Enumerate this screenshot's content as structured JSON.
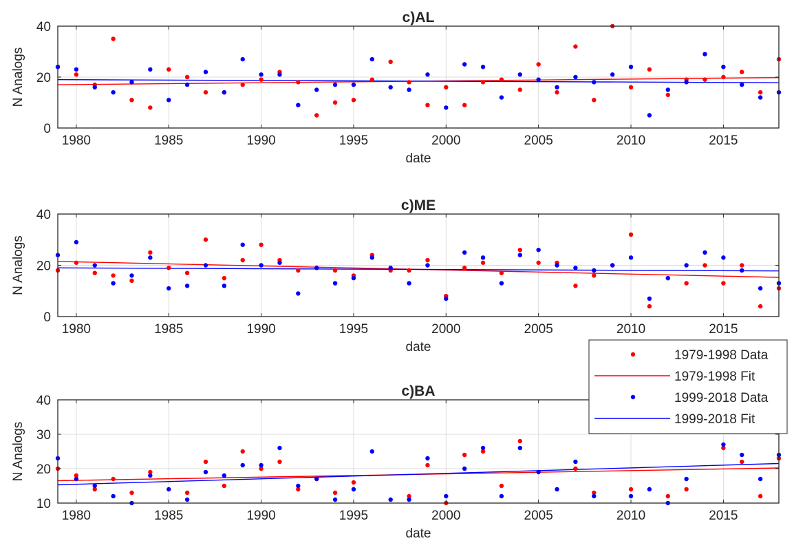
{
  "chart_data": [
    {
      "type": "scatter",
      "title": "c)AL",
      "xlabel": "date",
      "ylabel": "N Analogs",
      "xlim": [
        1979,
        2018
      ],
      "ylim": [
        0,
        40
      ],
      "xticks": [
        1980,
        1985,
        1990,
        1995,
        2000,
        2005,
        2010,
        2015
      ],
      "yticks": [
        0,
        20,
        40
      ],
      "grid": true,
      "series": [
        {
          "name": "1979-1998 Data",
          "kind": "points",
          "color": "#ff0000",
          "x": [
            1979,
            1980,
            1981,
            1982,
            1983,
            1984,
            1985,
            1986,
            1987,
            1988,
            1989,
            1990,
            1991,
            1992,
            1993,
            1994,
            1995,
            1996,
            1997,
            1998,
            1999,
            2000,
            2001,
            2002,
            2003,
            2004,
            2005,
            2006,
            2007,
            2008,
            2009,
            2010,
            2011,
            2012,
            2013,
            2014,
            2015,
            2016,
            2017,
            2018
          ],
          "y": [
            24,
            21,
            17,
            35,
            11,
            8,
            23,
            20,
            14,
            14,
            17,
            19,
            22,
            18,
            5,
            10,
            11,
            19,
            26,
            18,
            9,
            16,
            9,
            18,
            19,
            15,
            25,
            14,
            32,
            11,
            40,
            16,
            23,
            13,
            19,
            19,
            20,
            22,
            14,
            27
          ]
        },
        {
          "name": "1979-1998 Fit",
          "kind": "line",
          "color": "#ff0000",
          "x": [
            1979,
            2018
          ],
          "y": [
            17,
            19.8
          ]
        },
        {
          "name": "1999-2018 Data",
          "kind": "points",
          "color": "#0000ff",
          "x": [
            1979,
            1980,
            1981,
            1982,
            1983,
            1984,
            1985,
            1986,
            1987,
            1988,
            1989,
            1990,
            1991,
            1992,
            1993,
            1994,
            1995,
            1996,
            1997,
            1998,
            1999,
            2000,
            2001,
            2002,
            2003,
            2004,
            2005,
            2006,
            2007,
            2008,
            2009,
            2010,
            2011,
            2012,
            2013,
            2014,
            2015,
            2016,
            2017,
            2018
          ],
          "y": [
            24,
            23,
            16,
            14,
            18,
            23,
            11,
            17,
            22,
            14,
            27,
            21,
            21,
            9,
            15,
            17,
            17,
            27,
            16,
            15,
            21,
            8,
            25,
            24,
            12,
            21,
            19,
            16,
            20,
            18,
            21,
            24,
            5,
            15,
            18,
            29,
            24,
            17,
            12,
            14
          ]
        },
        {
          "name": "1999-2018 Fit",
          "kind": "line",
          "color": "#0000ff",
          "x": [
            1979,
            2018
          ],
          "y": [
            19,
            17.8
          ]
        }
      ]
    },
    {
      "type": "scatter",
      "title": "c)ME",
      "xlabel": "date",
      "ylabel": "N Analogs",
      "xlim": [
        1979,
        2018
      ],
      "ylim": [
        0,
        40
      ],
      "xticks": [
        1980,
        1985,
        1990,
        1995,
        2000,
        2005,
        2010,
        2015
      ],
      "yticks": [
        0,
        20,
        40
      ],
      "grid": true,
      "series": [
        {
          "name": "1979-1998 Data",
          "kind": "points",
          "color": "#ff0000",
          "x": [
            1979,
            1980,
            1981,
            1982,
            1983,
            1984,
            1985,
            1986,
            1987,
            1988,
            1989,
            1990,
            1991,
            1992,
            1993,
            1994,
            1995,
            1996,
            1997,
            1998,
            1999,
            2000,
            2001,
            2002,
            2003,
            2004,
            2005,
            2006,
            2007,
            2008,
            2009,
            2010,
            2011,
            2012,
            2013,
            2014,
            2015,
            2016,
            2017,
            2018
          ],
          "y": [
            18,
            21,
            17,
            16,
            14,
            25,
            19,
            17,
            30,
            15,
            22,
            28,
            22,
            18,
            19,
            18,
            16,
            24,
            18,
            18,
            22,
            8,
            19,
            21,
            17,
            26,
            21,
            21,
            12,
            16,
            20,
            32,
            4,
            15,
            13,
            20,
            13,
            20,
            4,
            11
          ]
        },
        {
          "name": "1979-1998 Fit",
          "kind": "line",
          "color": "#ff0000",
          "x": [
            1979,
            2018
          ],
          "y": [
            21.5,
            15.3
          ]
        },
        {
          "name": "1999-2018 Data",
          "kind": "points",
          "color": "#0000ff",
          "x": [
            1979,
            1980,
            1981,
            1982,
            1983,
            1984,
            1985,
            1986,
            1987,
            1988,
            1989,
            1990,
            1991,
            1992,
            1993,
            1994,
            1995,
            1996,
            1997,
            1998,
            1999,
            2000,
            2001,
            2002,
            2003,
            2004,
            2005,
            2006,
            2007,
            2008,
            2009,
            2010,
            2011,
            2012,
            2013,
            2014,
            2015,
            2016,
            2017,
            2018
          ],
          "y": [
            24,
            29,
            20,
            13,
            16,
            23,
            11,
            12,
            20,
            12,
            28,
            20,
            21,
            9,
            19,
            13,
            15,
            23,
            19,
            13,
            20,
            7,
            25,
            23,
            13,
            24,
            26,
            20,
            19,
            18,
            20,
            23,
            7,
            15,
            20,
            25,
            23,
            18,
            11,
            13
          ]
        },
        {
          "name": "1999-2018 Fit",
          "kind": "line",
          "color": "#0000ff",
          "x": [
            1979,
            2018
          ],
          "y": [
            19,
            17.8
          ]
        }
      ]
    },
    {
      "type": "scatter",
      "title": "c)BA",
      "xlabel": "date",
      "ylabel": "N Analogs",
      "xlim": [
        1979,
        2018
      ],
      "ylim": [
        10,
        40
      ],
      "xticks": [
        1980,
        1985,
        1990,
        1995,
        2000,
        2005,
        2010,
        2015
      ],
      "yticks": [
        10,
        20,
        30,
        40
      ],
      "grid": true,
      "series": [
        {
          "name": "1979-1998 Data",
          "kind": "points",
          "color": "#ff0000",
          "x": [
            1979,
            1980,
            1981,
            1982,
            1983,
            1984,
            1986,
            1987,
            1988,
            1989,
            1990,
            1991,
            1992,
            1993,
            1994,
            1995,
            1998,
            1999,
            2000,
            2001,
            2002,
            2003,
            2004,
            2007,
            2008,
            2010,
            2012,
            2013,
            2015,
            2016,
            2017,
            2018
          ],
          "y": [
            20,
            18,
            14,
            17,
            13,
            19,
            13,
            22,
            15,
            25,
            20,
            22,
            14,
            17,
            13,
            16,
            12,
            21,
            10,
            24,
            25,
            15,
            28,
            20,
            13,
            14,
            12,
            14,
            26,
            22,
            12,
            23
          ]
        },
        {
          "name": "1979-1998 Fit",
          "kind": "line",
          "color": "#ff0000",
          "x": [
            1979,
            2018
          ],
          "y": [
            16.5,
            20.2
          ]
        },
        {
          "name": "1999-2018 Data",
          "kind": "points",
          "color": "#0000ff",
          "x": [
            1979,
            1980,
            1981,
            1982,
            1983,
            1984,
            1985,
            1986,
            1987,
            1988,
            1989,
            1990,
            1991,
            1992,
            1993,
            1994,
            1995,
            1996,
            1997,
            1998,
            1999,
            2000,
            2001,
            2002,
            2003,
            2004,
            2005,
            2006,
            2007,
            2008,
            2010,
            2011,
            2012,
            2013,
            2015,
            2016,
            2017,
            2018
          ],
          "y": [
            23,
            17,
            15,
            12,
            10,
            18,
            14,
            11,
            19,
            18,
            21,
            21,
            26,
            15,
            17,
            11,
            14,
            25,
            11,
            11,
            23,
            12,
            20,
            26,
            12,
            26,
            19,
            14,
            22,
            12,
            12,
            14,
            10,
            17,
            27,
            24,
            17,
            24
          ]
        },
        {
          "name": "1999-2018 Fit",
          "kind": "line",
          "color": "#0000ff",
          "x": [
            1979,
            2018
          ],
          "y": [
            15.3,
            21.5
          ]
        }
      ]
    }
  ],
  "legend": {
    "placement": "right, overlapping the third panel",
    "entries": [
      {
        "label": "1979-1998 Data",
        "marker": "dot",
        "color": "#ff0000"
      },
      {
        "label": "1979-1998 Fit",
        "marker": "line",
        "color": "#ff0000"
      },
      {
        "label": "1999-2018 Data",
        "marker": "dot",
        "color": "#0000ff"
      },
      {
        "label": "1999-2018 Fit",
        "marker": "line",
        "color": "#0000ff"
      }
    ]
  }
}
